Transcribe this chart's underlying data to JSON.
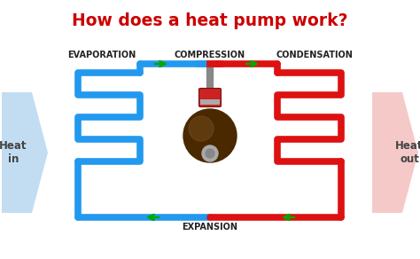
{
  "title": "How does a heat pump work?",
  "title_color": "#cc0000",
  "title_fontsize": 13.5,
  "bg_color": "#ffffff",
  "blue_color": "#2299ee",
  "red_color": "#dd1111",
  "green_color": "#00aa00",
  "label_evaporation": "EVAPORATION",
  "label_compression": "COMPRESSION",
  "label_condensation": "CONDENSATION",
  "label_expansion": "EXPANSION",
  "label_heat_in": "Heat\nin",
  "label_heat_out": "Heat\nout",
  "coil_lw": 5.5,
  "pipe_lw": 5.5,
  "label_fontsize": 7.0,
  "heat_label_fontsize": 8.5,
  "left_arrow_color": "#b8d8f0",
  "right_arrow_color": "#f5c0c0",
  "compressor_body_color": "#4a2800",
  "compressor_highlight": "#7a5020",
  "compressor_cap_red": "#cc2222",
  "compressor_cap_gray": "#aaaaaa",
  "compressor_stem_color": "#888888"
}
